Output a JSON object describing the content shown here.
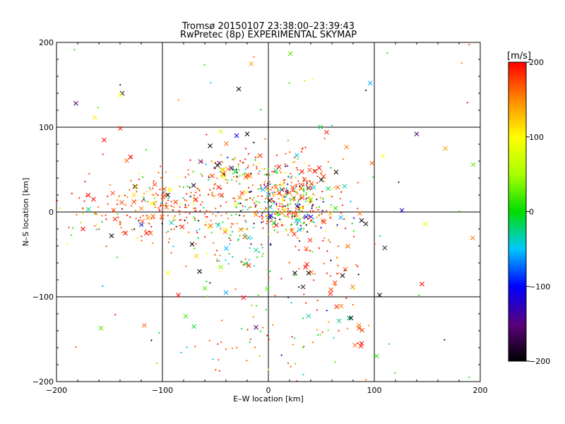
{
  "chart_data": {
    "type": "scatter",
    "title_line1": "Tromsø 20150107 23:38:00–23:39:43",
    "title_line2": "RwPretec (8p) EXPERIMENTAL SKYMAP",
    "xlabel": "E–W location [km]",
    "ylabel": "N–S location [km]",
    "xlim": [
      -200,
      200
    ],
    "ylim": [
      -200,
      200
    ],
    "x_ticks": [
      -200,
      -100,
      0,
      100,
      200
    ],
    "y_ticks": [
      -200,
      -100,
      0,
      100,
      200
    ],
    "x_tick_labels": [
      "−200",
      "−100",
      "0",
      "100",
      "200"
    ],
    "y_tick_labels": [
      "−200",
      "−100",
      "0",
      "100",
      "200"
    ],
    "grid": true,
    "colorbar": {
      "label": "[m/s]",
      "range": [
        -200,
        200
      ],
      "ticks": [
        200,
        100,
        0,
        -100,
        -200
      ],
      "tick_labels": [
        "200",
        "100",
        "0",
        "−100",
        "−200"
      ]
    },
    "point_count": 1000,
    "sample_points": [
      {
        "x": -138,
        "y": 140,
        "v": -200,
        "marker": "x"
      },
      {
        "x": -140,
        "y": 138,
        "v": 100,
        "marker": "x"
      },
      {
        "x": -28,
        "y": 145,
        "v": -200,
        "marker": "x"
      },
      {
        "x": -155,
        "y": 85,
        "v": 200,
        "marker": "x"
      },
      {
        "x": -130,
        "y": 65,
        "v": 200,
        "marker": "x"
      },
      {
        "x": -55,
        "y": 78,
        "v": -200,
        "marker": "x"
      },
      {
        "x": -45,
        "y": 95,
        "v": 80,
        "marker": "x"
      },
      {
        "x": -30,
        "y": 90,
        "v": -100,
        "marker": "x"
      },
      {
        "x": -20,
        "y": 92,
        "v": -200,
        "marker": "x"
      },
      {
        "x": 27,
        "y": 67,
        "v": -50,
        "marker": "x"
      },
      {
        "x": 55,
        "y": 94,
        "v": 200,
        "marker": "x"
      },
      {
        "x": 64,
        "y": 47,
        "v": -200,
        "marker": "x"
      },
      {
        "x": 108,
        "y": 66,
        "v": 100,
        "marker": "x"
      },
      {
        "x": 126,
        "y": 2,
        "v": -120,
        "marker": "x"
      },
      {
        "x": 88,
        "y": -10,
        "v": -200,
        "marker": "x"
      },
      {
        "x": 92,
        "y": -14,
        "v": -200,
        "marker": "x"
      },
      {
        "x": 70,
        "y": -75,
        "v": -200,
        "marker": "x"
      },
      {
        "x": 78,
        "y": -125,
        "v": -200,
        "marker": "x"
      },
      {
        "x": 105,
        "y": -98,
        "v": -200,
        "marker": "x"
      },
      {
        "x": 145,
        "y": -85,
        "v": 200,
        "marker": "x"
      },
      {
        "x": -170,
        "y": 20,
        "v": 200,
        "marker": "x"
      },
      {
        "x": -165,
        "y": 15,
        "v": 200,
        "marker": "x"
      },
      {
        "x": -175,
        "y": -20,
        "v": 200,
        "marker": "x"
      },
      {
        "x": -148,
        "y": -28,
        "v": -200,
        "marker": "x"
      },
      {
        "x": -135,
        "y": -25,
        "v": 200,
        "marker": "x"
      },
      {
        "x": -120,
        "y": -15,
        "v": -80,
        "marker": "x"
      },
      {
        "x": -125,
        "y": 30,
        "v": 120,
        "marker": "x"
      },
      {
        "x": -95,
        "y": 20,
        "v": -200,
        "marker": "x"
      },
      {
        "x": -110,
        "y": 10,
        "v": 100,
        "marker": "x"
      },
      {
        "x": -72,
        "y": -38,
        "v": -200,
        "marker": "x"
      },
      {
        "x": -68,
        "y": -52,
        "v": 120,
        "marker": "x"
      },
      {
        "x": -65,
        "y": -70,
        "v": -200,
        "marker": "x"
      },
      {
        "x": -95,
        "y": -72,
        "v": 100,
        "marker": "x"
      },
      {
        "x": -60,
        "y": -90,
        "v": 20,
        "marker": "x"
      },
      {
        "x": -85,
        "y": -98,
        "v": 200,
        "marker": "x"
      },
      {
        "x": -78,
        "y": -123,
        "v": 20,
        "marker": "x"
      },
      {
        "x": -158,
        "y": -137,
        "v": 20,
        "marker": "x"
      },
      {
        "x": -45,
        "y": -65,
        "v": 40,
        "marker": "x"
      },
      {
        "x": -40,
        "y": -95,
        "v": -60,
        "marker": "x"
      },
      {
        "x": 25,
        "y": -72,
        "v": -200,
        "marker": "x"
      },
      {
        "x": 38,
        "y": -72,
        "v": -200,
        "marker": "x"
      },
      {
        "x": 35,
        "y": -65,
        "v": 200,
        "marker": "x"
      },
      {
        "x": 48,
        "y": 52,
        "v": 200,
        "marker": "x"
      },
      {
        "x": 50,
        "y": 38,
        "v": -200,
        "marker": "x"
      },
      {
        "x": 44,
        "y": 48,
        "v": 200,
        "marker": "x"
      },
      {
        "x": -48,
        "y": 55,
        "v": -200,
        "marker": "x"
      },
      {
        "x": -43,
        "y": 50,
        "v": 120,
        "marker": "x"
      },
      {
        "x": -35,
        "y": 52,
        "v": -150,
        "marker": "x"
      },
      {
        "x": 88,
        "y": -155,
        "v": 200,
        "marker": "x"
      },
      {
        "x": -115,
        "y": -25,
        "v": 200,
        "marker": "x"
      }
    ]
  }
}
